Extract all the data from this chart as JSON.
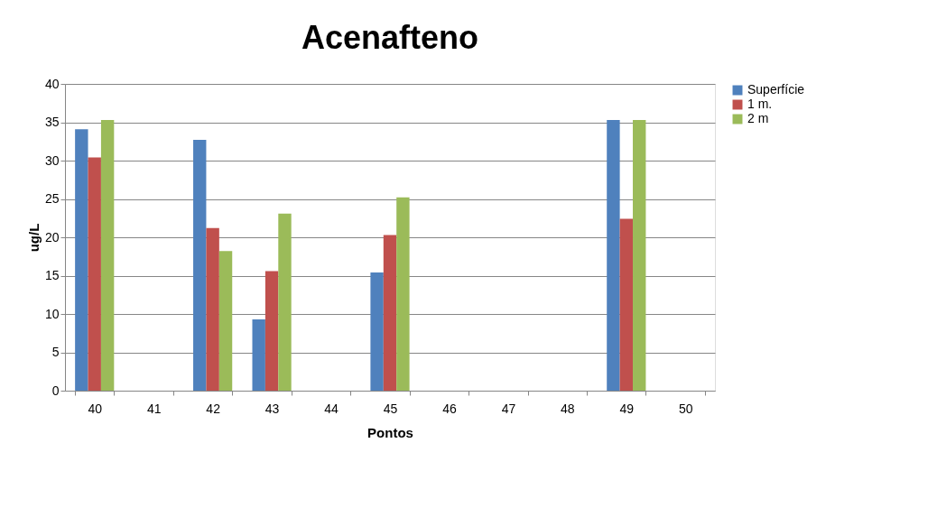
{
  "chart_data": {
    "type": "bar",
    "title": "Acenafteno",
    "xlabel": "Pontos",
    "ylabel": "ug/L",
    "categories": [
      "40",
      "41",
      "42",
      "43",
      "44",
      "45",
      "46",
      "47",
      "48",
      "49",
      "50"
    ],
    "series": [
      {
        "name": "Superfície",
        "color": "#4f81bd",
        "values": [
          34.1,
          0,
          32.7,
          9.3,
          0,
          15.4,
          0,
          0,
          0,
          35.3,
          0
        ]
      },
      {
        "name": "1 m.",
        "color": "#c0504d",
        "values": [
          30.4,
          0,
          21.2,
          15.6,
          0,
          20.3,
          0,
          0,
          0,
          22.4,
          0
        ]
      },
      {
        "name": "2 m",
        "color": "#9bbb59",
        "values": [
          35.3,
          0,
          18.2,
          23.1,
          0,
          25.2,
          0,
          0,
          0,
          35.3,
          0
        ]
      }
    ],
    "ylim": [
      0,
      40
    ],
    "yticks": [
      0,
      5,
      10,
      15,
      20,
      25,
      30,
      35,
      40
    ],
    "grid": "y",
    "legend": "right"
  }
}
